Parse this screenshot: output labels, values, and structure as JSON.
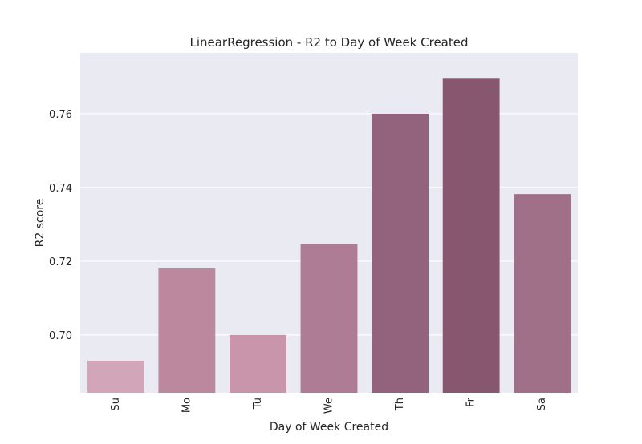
{
  "chart_data": {
    "type": "bar",
    "title": "LinearRegression - R2 to Day of Week Created",
    "xlabel": "Day of Week Created",
    "ylabel": "R2 score",
    "categories": [
      "Su",
      "Mo",
      "Tu",
      "We",
      "Th",
      "Fr",
      "Sa"
    ],
    "values": [
      0.693,
      0.718,
      0.7,
      0.7247,
      0.76,
      0.7697,
      0.7382
    ],
    "ylim": [
      0.6843,
      0.7765
    ],
    "yticks": [
      0.7,
      0.72,
      0.74,
      0.76
    ],
    "ytick_labels": [
      "0.70",
      "0.72",
      "0.74",
      "0.76"
    ],
    "bar_colors": [
      "#d3a5b9",
      "#bc889d",
      "#c995aa",
      "#ae7c95",
      "#93627c",
      "#87566f",
      "#a07089"
    ],
    "background": "#eaeaf2",
    "grid": true,
    "legend": "none"
  }
}
